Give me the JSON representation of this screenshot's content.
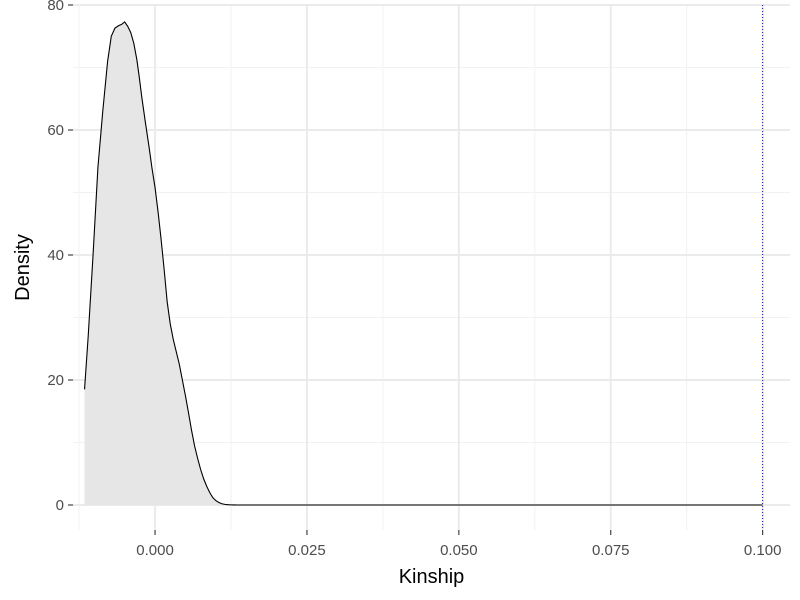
{
  "chart_data": {
    "type": "area",
    "title": "",
    "xlabel": "Kinship",
    "ylabel": "Density",
    "xlim": [
      -0.0135,
      0.1045
    ],
    "ylim": [
      -4,
      80
    ],
    "x_ticks": [
      0.0,
      0.025,
      0.05,
      0.075,
      0.1
    ],
    "x_tick_labels": [
      "0.000",
      "0.025",
      "0.050",
      "0.075",
      "0.100"
    ],
    "y_ticks": [
      0,
      20,
      40,
      60,
      80
    ],
    "y_tick_labels": [
      "0",
      "20",
      "40",
      "60",
      "80"
    ],
    "grid": true,
    "legend": "none",
    "reference_line": {
      "x": 0.1,
      "style": "dotted",
      "color": "#0000ff"
    },
    "fill_color": "#e6e6e6",
    "line_color": "#000000",
    "series": [
      {
        "x": [
          -0.0116,
          -0.011,
          -0.0102,
          -0.0094,
          -0.0086,
          -0.0078,
          -0.0072,
          -0.0066,
          -0.006,
          -0.0055,
          -0.005,
          -0.0045,
          -0.004,
          -0.0035,
          -0.003,
          -0.0026,
          -0.0022,
          -0.0016,
          -0.001,
          -0.0005,
          0.0,
          0.0005,
          0.001,
          0.0015,
          0.002,
          0.0025,
          0.003,
          0.0035,
          0.004,
          0.0045,
          0.005,
          0.0055,
          0.006,
          0.0065,
          0.007,
          0.0075,
          0.008,
          0.0085,
          0.009,
          0.0095,
          0.01,
          0.0105,
          0.011,
          0.0115,
          0.012,
          0.0125,
          0.013,
          0.0135,
          0.014,
          0.015,
          0.02,
          0.04,
          0.06,
          0.08,
          0.1
        ],
        "y": [
          18.5,
          27,
          40,
          54,
          63,
          71,
          75,
          76.3,
          76.7,
          76.9,
          77.3,
          76.6,
          75.6,
          73.9,
          71.3,
          68.5,
          65.4,
          61.3,
          57.4,
          53.9,
          50.8,
          46.9,
          42.5,
          37.7,
          32.5,
          29,
          26.5,
          24.5,
          22.5,
          20,
          17.5,
          14.8,
          12,
          9.5,
          7.5,
          5.7,
          4.2,
          3,
          2,
          1.2,
          0.7,
          0.4,
          0.2,
          0.1,
          0.05,
          0.02,
          0.01,
          0,
          0,
          0,
          0,
          0,
          0,
          0,
          0
        ]
      }
    ]
  }
}
